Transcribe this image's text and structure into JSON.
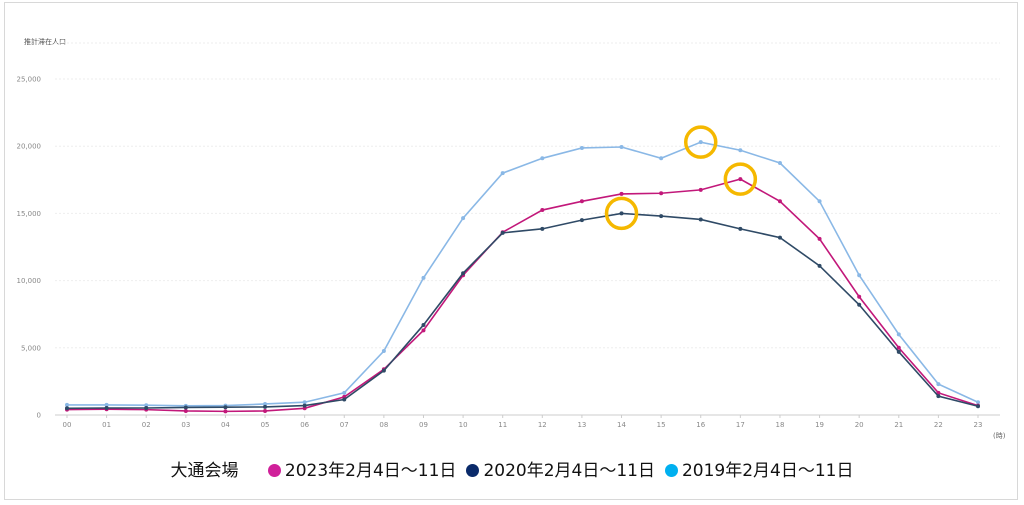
{
  "chart_data": {
    "type": "line",
    "ylabel": "推計滞在人口",
    "xunit": "(時)",
    "ylim": [
      0,
      25000
    ],
    "yticks": [
      "0",
      "5,000",
      "10,000",
      "15,000",
      "20,000",
      "25,000"
    ],
    "ytick_values": [
      0,
      5000,
      10000,
      15000,
      20000,
      25000
    ],
    "categories": [
      "00",
      "01",
      "02",
      "03",
      "04",
      "05",
      "06",
      "07",
      "08",
      "09",
      "10",
      "11",
      "12",
      "13",
      "14",
      "15",
      "16",
      "17",
      "18",
      "19",
      "20",
      "21",
      "22",
      "23"
    ],
    "grid": "horizontal dashed",
    "legend_title": "大通会場",
    "legend_position": "bottom",
    "series": [
      {
        "name": "2019年2月4日～11日",
        "color": "#8ab8e6",
        "legend_color": "#00b0f0",
        "values": [
          750,
          750,
          730,
          680,
          700,
          820,
          950,
          1650,
          4760,
          10200,
          14650,
          18000,
          19100,
          19870,
          19940,
          19100,
          20300,
          19700,
          18750,
          15900,
          10400,
          6000,
          2300,
          950
        ]
      },
      {
        "name": "2023年2月4日～11日",
        "color": "#c2187a",
        "legend_color": "#d0209a",
        "values": [
          400,
          430,
          400,
          300,
          270,
          300,
          500,
          1350,
          3400,
          6300,
          10400,
          13600,
          15250,
          15900,
          16450,
          16500,
          16750,
          17550,
          15900,
          13100,
          8800,
          5000,
          1650,
          700
        ]
      },
      {
        "name": "2020年2月4日～11日",
        "color": "#2f4a66",
        "legend_color": "#0a2a6a",
        "values": [
          500,
          520,
          520,
          560,
          580,
          600,
          700,
          1150,
          3300,
          6700,
          10550,
          13550,
          13850,
          14500,
          15000,
          14800,
          14550,
          13850,
          13200,
          11100,
          8200,
          4700,
          1400,
          650
        ]
      }
    ],
    "legend_order": [
      1,
      2,
      0
    ],
    "highlights": {
      "color": "#f5b800",
      "marks": [
        {
          "series": 2,
          "hour": "14"
        },
        {
          "series": 0,
          "hour": "16"
        },
        {
          "series": 1,
          "hour": "17"
        }
      ]
    }
  }
}
